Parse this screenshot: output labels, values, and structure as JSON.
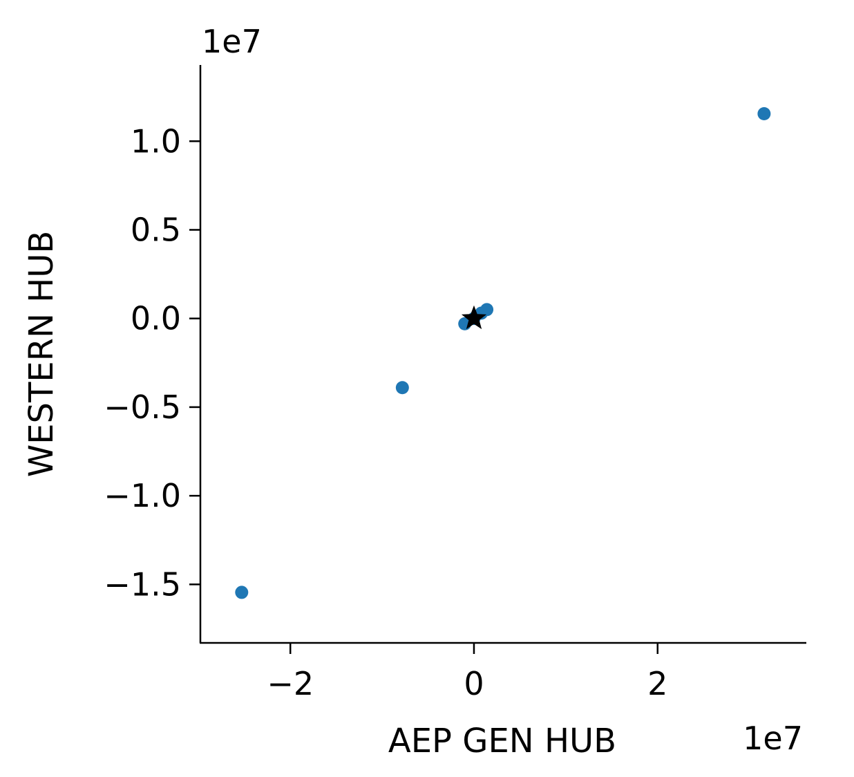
{
  "chart_data": {
    "type": "scatter",
    "title": "",
    "xlabel": "AEP GEN HUB",
    "ylabel": "WESTERN HUB",
    "x_offset_label": "1e7",
    "y_offset_label": "1e7",
    "x_scale": 10000000,
    "y_scale": 10000000,
    "xlim": [
      -2.98,
      3.62
    ],
    "ylim": [
      -1.83,
      1.43
    ],
    "x_ticks": [
      -2,
      0,
      2
    ],
    "x_tick_labels": [
      "−2",
      "0",
      "2"
    ],
    "y_ticks": [
      -1.5,
      -1.0,
      -0.5,
      0.0,
      0.5,
      1.0
    ],
    "y_tick_labels": [
      "−1.5",
      "−1.0",
      "−0.5",
      "0.0",
      "0.5",
      "1.0"
    ],
    "grid": false,
    "series": [
      {
        "marker": "circle",
        "color": "#1f77b4",
        "points": [
          {
            "x": -2.53,
            "y": -1.545
          },
          {
            "x": -0.78,
            "y": -0.39
          },
          {
            "x": -0.1,
            "y": -0.03
          },
          {
            "x": 0.0,
            "y": 0.0
          },
          {
            "x": 0.08,
            "y": 0.03
          },
          {
            "x": 0.14,
            "y": 0.05
          },
          {
            "x": 3.16,
            "y": 1.155
          }
        ]
      },
      {
        "marker": "star",
        "color": "#000000",
        "points": [
          {
            "x": 0.0,
            "y": 0.0
          }
        ]
      }
    ]
  }
}
